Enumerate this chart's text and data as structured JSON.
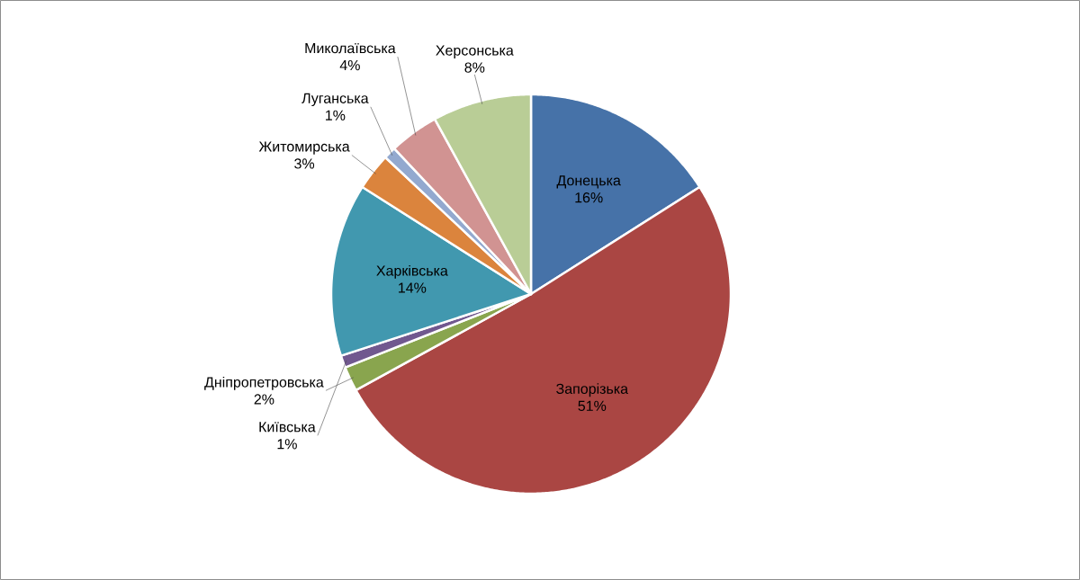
{
  "chart_data": {
    "type": "pie",
    "categories": [
      "Донецька",
      "Запорізька",
      "Дніпропетровська",
      "Київська",
      "Харківська",
      "Житомирська",
      "Луганська",
      "Миколаївська",
      "Херсонська"
    ],
    "values": [
      16,
      51,
      2,
      1,
      14,
      3,
      1,
      4,
      8
    ],
    "value_labels": [
      "16%",
      "51%",
      "2%",
      "1%",
      "14%",
      "3%",
      "1%",
      "4%",
      "8%"
    ],
    "colors": [
      "#4672a8",
      "#aa4643",
      "#89a54e",
      "#71588f",
      "#4198af",
      "#db843d",
      "#93a9cf",
      "#d19392",
      "#b9cd96"
    ]
  }
}
